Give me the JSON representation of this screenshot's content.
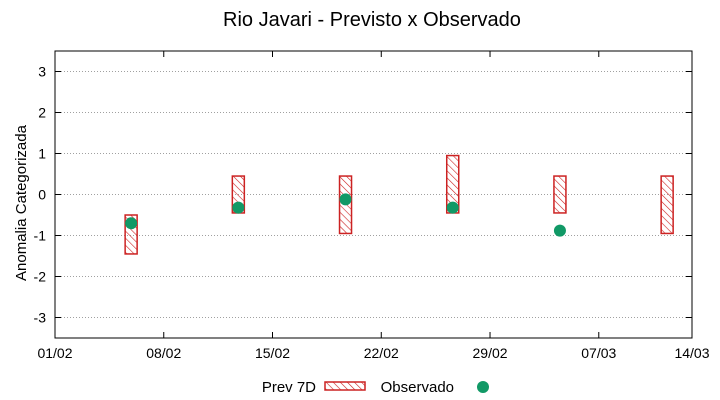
{
  "chart_data": {
    "type": "floating-bar-scatter",
    "title": "Rio Javari - Previsto x Observado",
    "xlabel": "",
    "ylabel": "Anomalia Categorizada",
    "ylim": [
      -3.5,
      3.5
    ],
    "yticks": [
      3,
      2,
      1,
      0,
      -1,
      -2,
      -3
    ],
    "x_domain_days": [
      0,
      41
    ],
    "xticks": [
      {
        "day": 0,
        "label": "01/02"
      },
      {
        "day": 7,
        "label": "08/02"
      },
      {
        "day": 14,
        "label": "15/02"
      },
      {
        "day": 21,
        "label": "22/02"
      },
      {
        "day": 28,
        "label": "29/02"
      },
      {
        "day": 35,
        "label": "07/03"
      },
      {
        "day": 41,
        "label": "14/03"
      }
    ],
    "grid": true,
    "series": [
      {
        "name": "Prev 7D",
        "kind": "range-bar",
        "color": "#cc2222",
        "points": [
          {
            "day": 4.9,
            "low": -1.45,
            "high": -0.5
          },
          {
            "day": 11.8,
            "low": -0.45,
            "high": 0.45
          },
          {
            "day": 18.7,
            "low": -0.95,
            "high": 0.45
          },
          {
            "day": 25.6,
            "low": -0.45,
            "high": 0.95
          },
          {
            "day": 32.5,
            "low": -0.45,
            "high": 0.45
          },
          {
            "day": 39.4,
            "low": -0.95,
            "high": 0.45
          }
        ]
      },
      {
        "name": "Observado",
        "kind": "scatter",
        "color": "#119966",
        "points": [
          {
            "day": 4.9,
            "value": -0.7
          },
          {
            "day": 11.8,
            "value": -0.32
          },
          {
            "day": 18.7,
            "value": -0.12
          },
          {
            "day": 25.6,
            "value": -0.32
          },
          {
            "day": 32.5,
            "value": -0.88
          }
        ]
      }
    ],
    "legend": {
      "placement": "bottom-center"
    }
  }
}
